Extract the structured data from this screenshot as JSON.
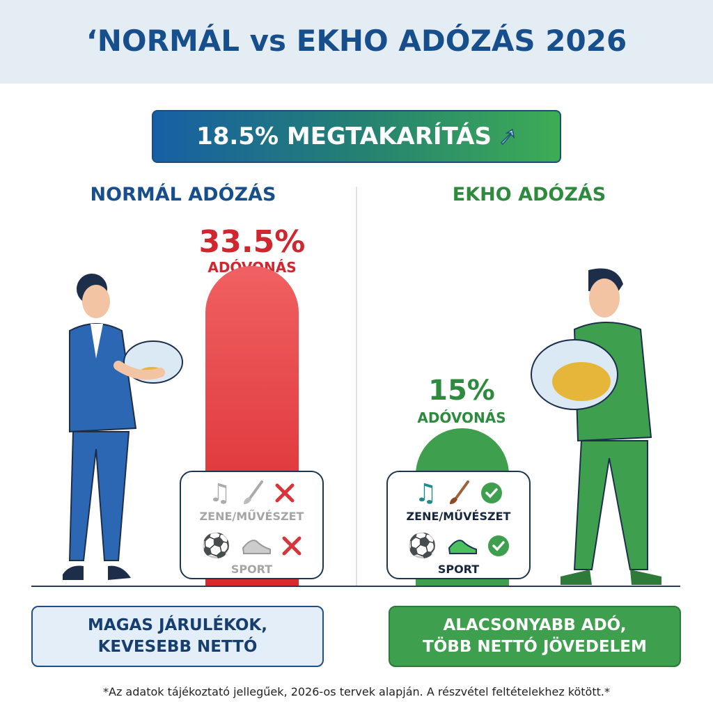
{
  "header": {
    "title": "‘NORMÁL vs EKHO ADÓZÁS 2026"
  },
  "banner": {
    "label": "18.5% MEGTAKARÍTÁS",
    "icon": "arrow-up-right-icon"
  },
  "normal": {
    "heading": "NORMÁL ADÓZÁS",
    "rate": "33.5%",
    "rate_label": "ADÓVONÁS",
    "rate_value": 33.5,
    "color": "#d8282c",
    "categories": [
      {
        "label": "ZENE/MŰVÉSZET",
        "status": "excluded"
      },
      {
        "label": "SPORT",
        "status": "excluded"
      }
    ],
    "summary": [
      "MAGAS JÁRULÉKOK,",
      "KEVESEBB NETTÓ"
    ]
  },
  "ekho": {
    "heading": "EKHO ADÓZÁS",
    "rate": "15%",
    "rate_label": "ADÓVONÁS",
    "rate_value": 15,
    "color": "#3ea04e",
    "categories": [
      {
        "label": "ZENE/MŰVÉSZET",
        "status": "included"
      },
      {
        "label": "SPORT",
        "status": "included"
      }
    ],
    "summary": [
      "ALACSONYABB ADÓ,",
      "TÖBB NETTÓ JÖVEDELEM"
    ]
  },
  "footnote": "*Az adatok tájékoztató jellegűek, 2026-os tervek alapján. A részvétel feltételekhez kötött.*"
}
